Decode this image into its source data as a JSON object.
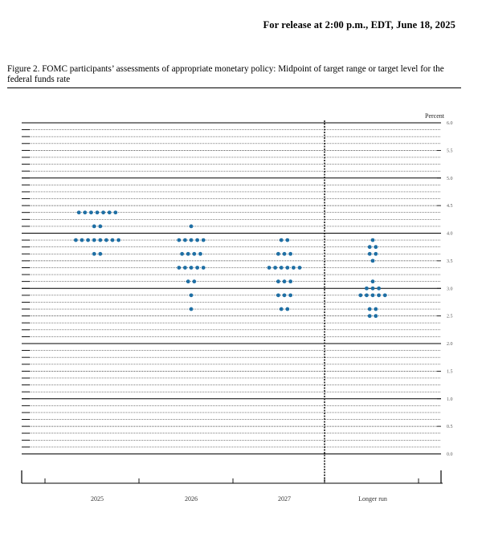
{
  "header": {
    "release_text": "For release at 2:00 p.m., EDT, June 18, 2025"
  },
  "figure": {
    "caption": "Figure 2.  FOMC participants’ assessments of appropriate monetary policy: Midpoint of target range or target level for the federal funds rate"
  },
  "chart_data": {
    "type": "scatter",
    "ylabel": "Percent",
    "ylim": [
      0,
      6
    ],
    "y_ticks": [
      "0.0",
      "0.5",
      "1.0",
      "1.5",
      "2.0",
      "2.5",
      "3.0",
      "3.5",
      "4.0",
      "4.5",
      "5.0",
      "5.5",
      "6.0"
    ],
    "categories": [
      "2025",
      "2026",
      "2027",
      "Longer run"
    ],
    "dot_color": "#1f6fa4",
    "series": [
      {
        "category": "2025",
        "points": [
          {
            "y": 4.375,
            "count": 7
          },
          {
            "y": 4.125,
            "count": 2
          },
          {
            "y": 3.875,
            "count": 8
          },
          {
            "y": 3.625,
            "count": 2
          }
        ]
      },
      {
        "category": "2026",
        "points": [
          {
            "y": 4.125,
            "count": 1
          },
          {
            "y": 3.875,
            "count": 5
          },
          {
            "y": 3.625,
            "count": 4
          },
          {
            "y": 3.375,
            "count": 5
          },
          {
            "y": 3.125,
            "count": 2
          },
          {
            "y": 2.875,
            "count": 1
          },
          {
            "y": 2.625,
            "count": 1
          }
        ]
      },
      {
        "category": "2027",
        "points": [
          {
            "y": 3.875,
            "count": 2
          },
          {
            "y": 3.625,
            "count": 3
          },
          {
            "y": 3.375,
            "count": 6
          },
          {
            "y": 3.125,
            "count": 3
          },
          {
            "y": 2.875,
            "count": 3
          },
          {
            "y": 2.625,
            "count": 2
          }
        ]
      },
      {
        "category": "Longer run",
        "points": [
          {
            "y": 3.875,
            "count": 1
          },
          {
            "y": 3.75,
            "count": 2
          },
          {
            "y": 3.625,
            "count": 2
          },
          {
            "y": 3.5,
            "count": 1
          },
          {
            "y": 3.125,
            "count": 1
          },
          {
            "y": 3.0,
            "count": 3
          },
          {
            "y": 2.875,
            "count": 5
          },
          {
            "y": 2.625,
            "count": 2
          },
          {
            "y": 2.5,
            "count": 2
          }
        ]
      }
    ]
  }
}
